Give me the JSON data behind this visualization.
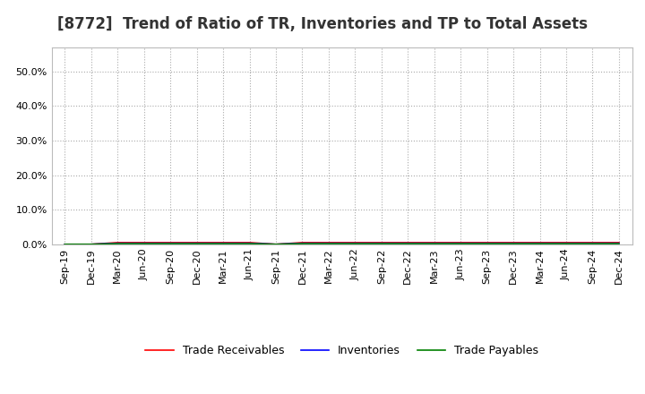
{
  "title": "[8772]  Trend of Ratio of TR, Inventories and TP to Total Assets",
  "x_labels": [
    "Sep-19",
    "Dec-19",
    "Mar-20",
    "Jun-20",
    "Sep-20",
    "Dec-20",
    "Mar-21",
    "Jun-21",
    "Sep-21",
    "Dec-21",
    "Mar-22",
    "Jun-22",
    "Sep-22",
    "Dec-22",
    "Mar-23",
    "Jun-23",
    "Sep-23",
    "Dec-23",
    "Mar-24",
    "Jun-24",
    "Sep-24",
    "Dec-24"
  ],
  "trade_receivables": [
    0.0,
    0.0,
    0.005,
    0.005,
    0.005,
    0.005,
    0.005,
    0.005,
    0.0,
    0.005,
    0.005,
    0.005,
    0.005,
    0.005,
    0.005,
    0.005,
    0.005,
    0.005,
    0.005,
    0.005,
    0.005,
    0.005
  ],
  "inventories": [
    0.0,
    0.0,
    0.003,
    0.003,
    0.003,
    0.003,
    0.003,
    0.003,
    0.0,
    0.003,
    0.003,
    0.003,
    0.003,
    0.003,
    0.003,
    0.003,
    0.003,
    0.003,
    0.003,
    0.003,
    0.003,
    0.003
  ],
  "trade_payables": [
    0.0,
    0.0,
    0.002,
    0.002,
    0.002,
    0.002,
    0.002,
    0.002,
    0.0,
    0.002,
    0.002,
    0.002,
    0.002,
    0.002,
    0.002,
    0.002,
    0.002,
    0.002,
    0.002,
    0.002,
    0.002,
    0.002
  ],
  "tr_color": "#ff0000",
  "inv_color": "#0000ff",
  "tp_color": "#008000",
  "ylim": [
    0.0,
    0.57
  ],
  "yticks": [
    0.0,
    0.1,
    0.2,
    0.3,
    0.4,
    0.5
  ],
  "bg_color": "#ffffff",
  "plot_bg_color": "#ffffff",
  "grid_color": "#aaaaaa",
  "title_fontsize": 12,
  "tick_fontsize": 8,
  "legend_fontsize": 9,
  "line_width": 1.2
}
